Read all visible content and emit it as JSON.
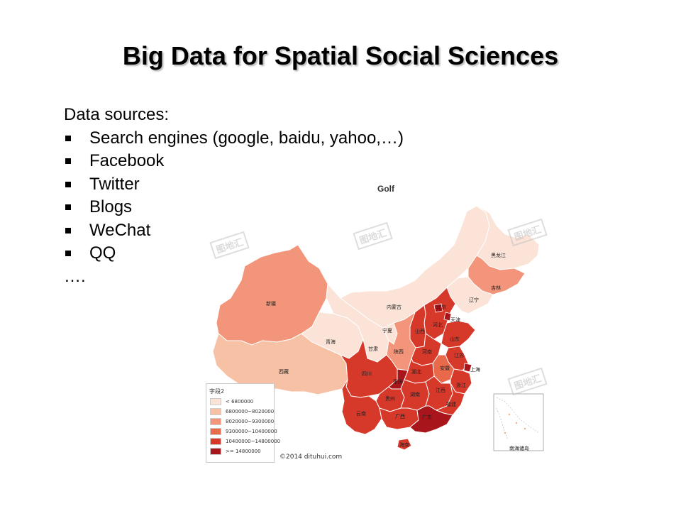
{
  "slide": {
    "title": "Big Data for Spatial Social Sciences",
    "intro": "Data sources:",
    "bullets": [
      "Search engines (google, baidu, yahoo,…)",
      "Facebook",
      "Twitter",
      "Blogs",
      "WeChat",
      "QQ"
    ],
    "tail": "…."
  },
  "map": {
    "title": "Golf",
    "credit": "©2014 dituhui.com",
    "watermark": "图地汇",
    "legend": {
      "title": "字段2",
      "items": [
        {
          "label": "< 6800000",
          "color": "#fbe3d8"
        },
        {
          "label": "6800000~8020000",
          "color": "#f7c1a6"
        },
        {
          "label": "8020000~9300000",
          "color": "#f2957a"
        },
        {
          "label": "9300000~10400000",
          "color": "#e96a4b"
        },
        {
          "label": "10400000~14800000",
          "color": "#d6382a"
        },
        {
          "label": ">= 14800000",
          "color": "#a8151b"
        }
      ]
    },
    "provinces": {
      "xinjiang": "新疆",
      "xizang": "西藏",
      "qinghai": "青海",
      "gansu": "甘肃",
      "neimenggu": "内蒙古",
      "ningxia": "宁夏",
      "heilongjiang": "黑龙江",
      "jilin": "吉林",
      "liaoning": "辽宁",
      "beijing": "北京",
      "tianjin": "天津",
      "hebei": "河北",
      "shanxi": "山西",
      "shandong": "山东",
      "shaanxi": "陕西",
      "henan": "河南",
      "jiangsu": "江苏",
      "shanghai": "上海",
      "anhui": "安徽",
      "hubei": "湖北",
      "sichuan": "四川",
      "chongqing": "重庆",
      "zhejiang": "浙江",
      "guizhou": "贵州",
      "hunan": "湖南",
      "jiangxi": "江西",
      "fujian": "福建",
      "yunnan": "云南",
      "guangxi": "广西",
      "guangdong": "广东",
      "hainan": "海南",
      "nanhai": "南海诸岛"
    }
  }
}
